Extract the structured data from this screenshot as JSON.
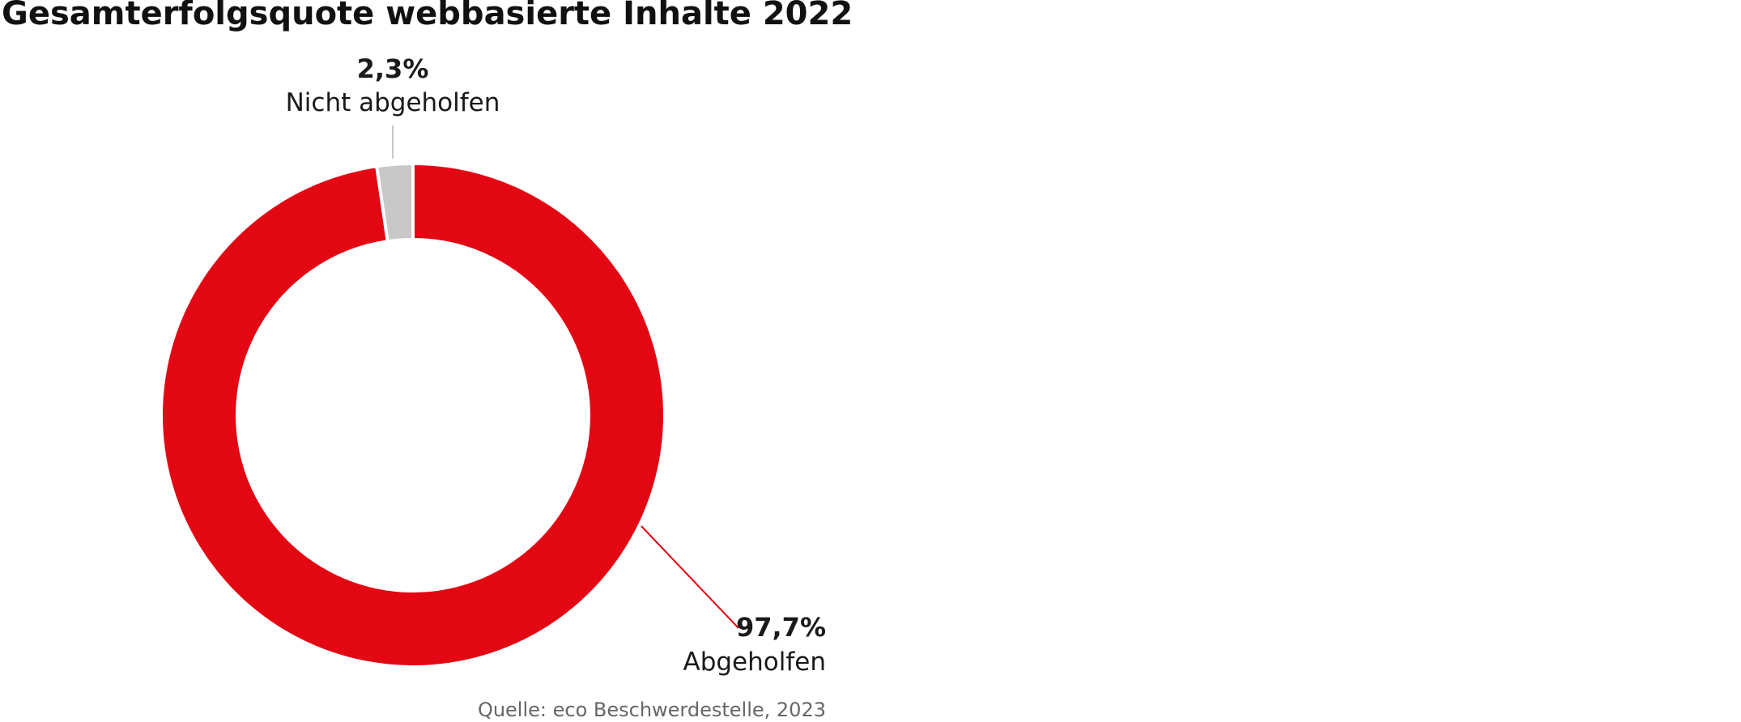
{
  "chart_data": {
    "type": "pie",
    "variant": "donut",
    "title": "Gesamterfolgsquote webbasierte Inhalte 2022",
    "source": "Quelle: eco Beschwerdestelle, 2023",
    "slices": [
      {
        "label": "Abgeholfen",
        "value": 97.7,
        "value_label": "97,7%",
        "color": "#e30613"
      },
      {
        "label": "Nicht abgeholfen",
        "value": 2.3,
        "value_label": "2,3%",
        "color": "#c8c8c8"
      }
    ],
    "legend": "none"
  }
}
